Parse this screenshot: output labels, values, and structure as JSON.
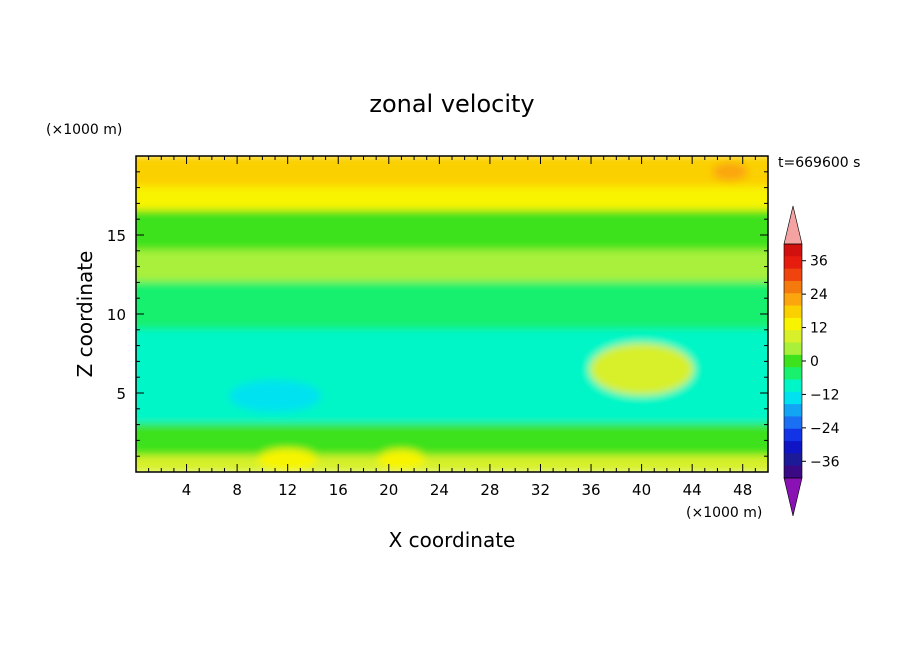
{
  "chart_data": {
    "type": "heatmap",
    "title": "zonal velocity",
    "xlabel": "X coordinate",
    "ylabel": "Z coordinate",
    "x_unit_label": "(×1000 m)",
    "y_unit_label": "(×1000 m)",
    "time_label": "t=669600 s",
    "xlim": [
      0,
      50
    ],
    "ylim": [
      0,
      20
    ],
    "x_ticks": [
      "4",
      "8",
      "12",
      "16",
      "20",
      "24",
      "28",
      "32",
      "36",
      "40",
      "44",
      "48"
    ],
    "y_ticks": [
      "5",
      "10",
      "15"
    ],
    "colorbar": {
      "tick_labels": [
        "36",
        "24",
        "12",
        "0",
        "−12",
        "−24",
        "−36"
      ],
      "range": [
        -42,
        42
      ],
      "extend": "both",
      "colors": [
        "#3a0a86",
        "#1d1a97",
        "#0f14c4",
        "#1234e6",
        "#1a6ff2",
        "#12a5f4",
        "#00e2f0",
        "#00f6c6",
        "#18f06e",
        "#3de21c",
        "#a8f03a",
        "#d7f02a",
        "#f8f400",
        "#fbd000",
        "#fba60e",
        "#f57a0e",
        "#f0440e",
        "#e61d0e",
        "#d2100e"
      ],
      "under_color": "#8a12b4",
      "over_color": "#f4a2a2"
    },
    "field_bands_m_per_s": [
      {
        "z_range": [
          18,
          20
        ],
        "value": 19
      },
      {
        "z_range": [
          16.5,
          18
        ],
        "value": 12
      },
      {
        "z_range": [
          14,
          16.5
        ],
        "value": 2
      },
      {
        "z_range": [
          12,
          14
        ],
        "value": 4
      },
      {
        "z_range": [
          9,
          12
        ],
        "value": -4
      },
      {
        "z_range": [
          3,
          9
        ],
        "value": -8
      },
      {
        "z_range": [
          1,
          3
        ],
        "value": 1
      },
      {
        "z_range": [
          0,
          1
        ],
        "value": 8
      }
    ],
    "features_m_per_s": [
      {
        "name": "blue core",
        "x": 11,
        "z": 4.8,
        "value": -15
      },
      {
        "name": "cyan core",
        "x": 22,
        "z": 5.5,
        "value": -11
      },
      {
        "name": "positive cell",
        "x": 40,
        "z": 6.5,
        "value": 8
      },
      {
        "name": "upper-right max",
        "x": 47,
        "z": 19,
        "value": 24
      },
      {
        "name": "surface jet",
        "x": 12,
        "z": 0.8,
        "value": 14
      },
      {
        "name": "surface jet 2",
        "x": 21,
        "z": 0.8,
        "value": 13
      }
    ]
  }
}
